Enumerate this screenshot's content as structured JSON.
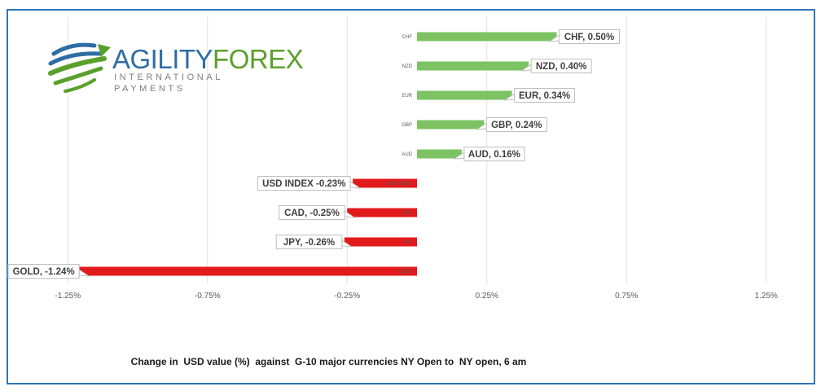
{
  "logo": {
    "word1": "AGILITY",
    "word2": "FOREX",
    "tagline": "INTERNATIONAL PAYMENTS"
  },
  "chart_data": {
    "type": "bar",
    "orientation": "horizontal",
    "categories": [
      "CHF",
      "NZD",
      "EUR",
      "GBP",
      "AUD",
      "USD INDEX",
      "CAD",
      "JPY",
      "GOLD"
    ],
    "values": [
      0.5,
      0.4,
      0.34,
      0.24,
      0.16,
      -0.23,
      -0.25,
      -0.26,
      -1.24
    ],
    "data_labels": [
      "CHF, 0.50%",
      "NZD, 0.40%",
      "EUR, 0.34%",
      "GBP, 0.24%",
      "AUD, 0.16%",
      "USD INDEX -0.23%",
      "CAD, -0.25%",
      "JPY, -0.26%",
      "GOLD, -1.24%"
    ],
    "x_ticks": [
      -1.25,
      -0.75,
      -0.25,
      0.25,
      0.75,
      1.25
    ],
    "x_tick_labels": [
      "-1.25%",
      "-0.75%",
      "-0.25%",
      "0.25%",
      "0.75%",
      "1.25%"
    ],
    "xlim": [
      -1.5,
      1.5
    ],
    "grid": "vertical",
    "positive_color": "#7dc363",
    "negative_color": "#e31a1c",
    "caption": "Change in  USD value (%)  against  G-10 major currencies NY Open to  NY open, 6 am"
  },
  "colors": {
    "frame": "#2e75b6",
    "logo_word1": "#2e6da4",
    "logo_word2": "#5aa02c"
  }
}
